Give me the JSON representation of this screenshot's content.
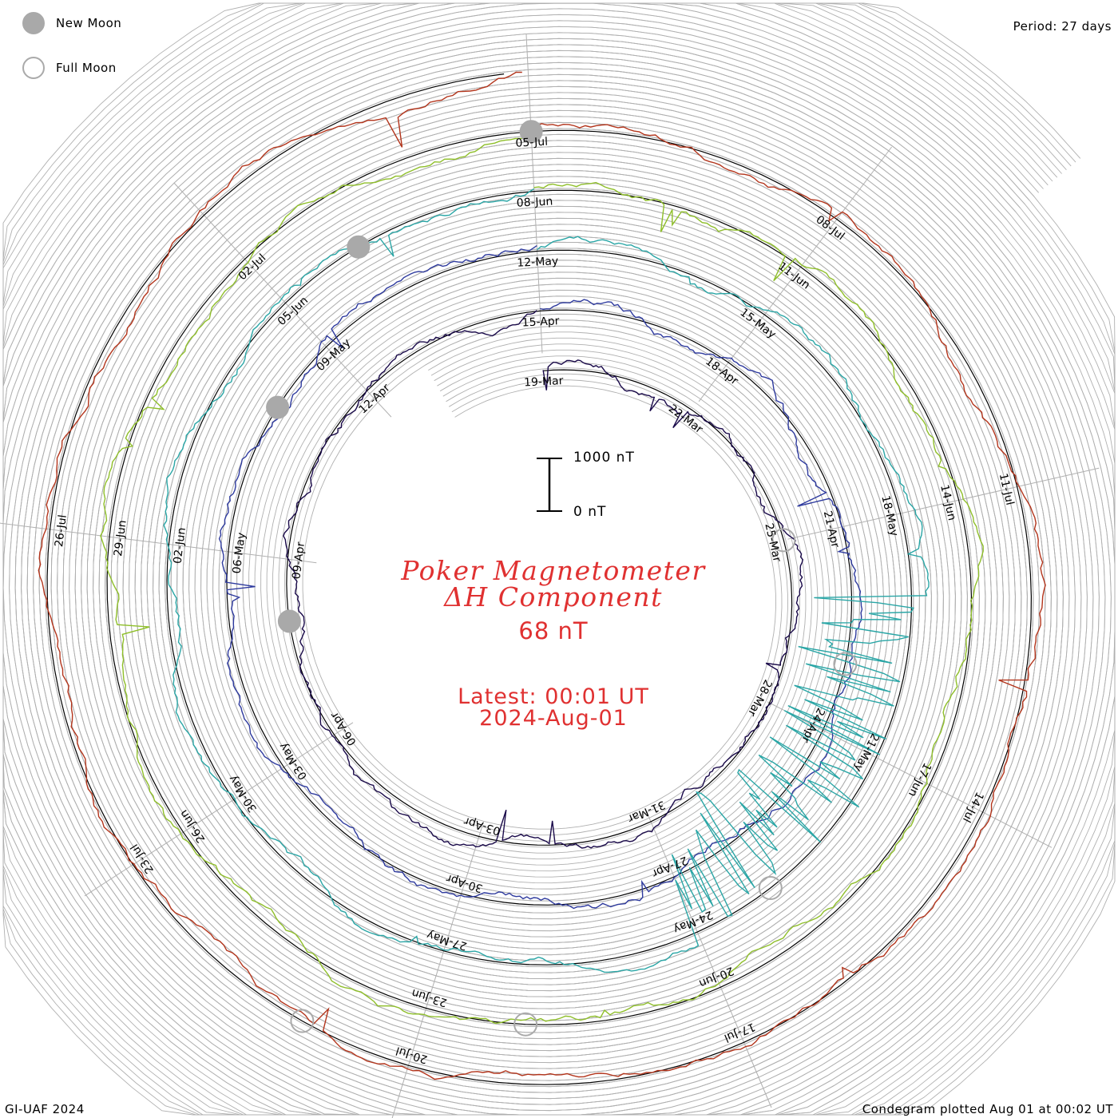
{
  "legend": {
    "new_moon": "New Moon",
    "full_moon": "Full Moon"
  },
  "period": "Period: 27 days",
  "footer_left": "GI-UAF 2024",
  "footer_right": "Condegram plotted Aug 01 at 00:02 UT",
  "title": {
    "line1": "Poker Magnetometer",
    "line2": "ΔH Component",
    "current_value": "68 nT",
    "latest_label": "Latest: 00:01 UT",
    "latest_date": "2024-Aug-01"
  },
  "scale_bar": {
    "top_label": "1000 nT",
    "bottom_label": "0 nT"
  },
  "colors": {
    "text_accent": "#e03131",
    "grid": "#b0b0b0",
    "baseline": "#000000",
    "new_moon_fill": "#a9a9a9",
    "full_moon_stroke": "#aaaaaa"
  },
  "chart_data": {
    "type": "line",
    "subtype": "spiral condegram",
    "period_days": 27,
    "start_date": "2024-03-19",
    "end_date": "2024-08-01",
    "series": [
      {
        "rotation": 1,
        "color": "#1a0a4a",
        "tick_labels": [
          "19-Mar",
          "22-Mar",
          "25-Mar",
          "28-Mar",
          "31-Mar",
          "03-Apr",
          "06-Apr",
          "09-Apr",
          "12-Apr"
        ]
      },
      {
        "rotation": 2,
        "color": "#2e3a9e",
        "tick_labels": [
          "15-Apr",
          "18-Apr",
          "21-Apr",
          "24-Apr",
          "27-Apr",
          "30-Apr",
          "03-May",
          "06-May",
          "09-May"
        ]
      },
      {
        "rotation": 3,
        "color": "#2aa6a6",
        "tick_labels": [
          "12-May",
          "15-May",
          "18-May",
          "21-May",
          "24-May",
          "27-May",
          "30-May",
          "02-Jun",
          "05-Jun"
        ]
      },
      {
        "rotation": 4,
        "color": "#8fbf2a",
        "tick_labels": [
          "08-Jun",
          "11-Jun",
          "14-Jun",
          "17-Jun",
          "20-Jun",
          "23-Jun",
          "26-Jun",
          "29-Jun",
          "02-Jul"
        ]
      },
      {
        "rotation": 5,
        "color": "#b3351c",
        "tick_labels": [
          "05-Jul",
          "08-Jul",
          "11-Jul",
          "14-Jul",
          "17-Jul",
          "20-Jul",
          "23-Jul",
          "26-Jul"
        ]
      }
    ],
    "new_moons": [
      "2024-04-08",
      "2024-05-08",
      "2024-06-06",
      "2024-07-05"
    ],
    "full_moons": [
      "2024-03-25",
      "2024-04-23",
      "2024-05-23",
      "2024-06-22",
      "2024-07-21"
    ],
    "scale": {
      "units": "nT",
      "bar_min": 0,
      "bar_max": 1000
    },
    "grid": true
  }
}
